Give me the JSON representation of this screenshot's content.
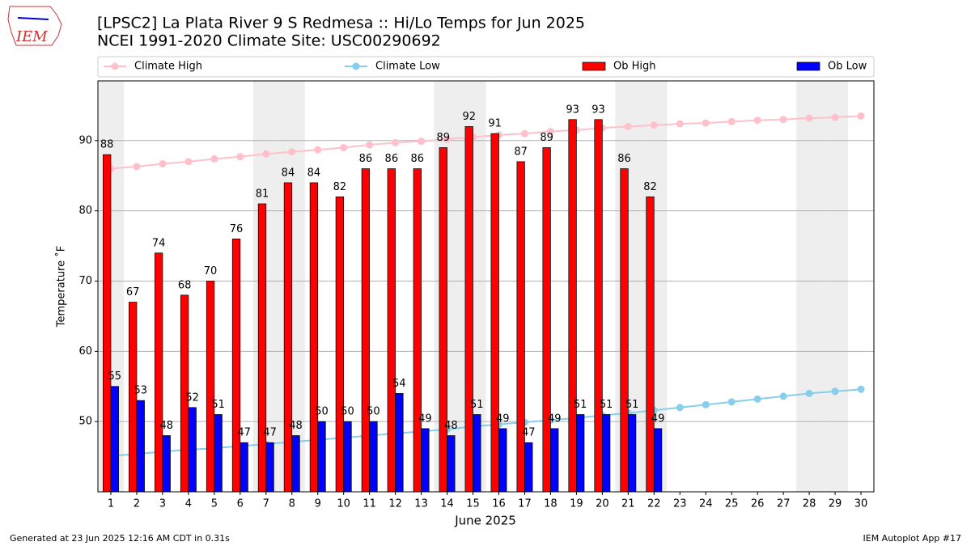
{
  "logo_text": "IEM",
  "footer_left": "Generated at 23 Jun 2025 12:16 AM CDT in 0.31s",
  "footer_right": "IEM Autoplot App #17",
  "chart_data": {
    "type": "combo",
    "title": "[LPSC2] La Plata River 9 S Redmesa :: Hi/Lo Temps for Jun 2025",
    "subtitle": "NCEI 1991-2020 Climate Site: USC00290692",
    "xlabel": "June 2025",
    "ylabel": "Temperature ˚F",
    "x": [
      1,
      2,
      3,
      4,
      5,
      6,
      7,
      8,
      9,
      10,
      11,
      12,
      13,
      14,
      15,
      16,
      17,
      18,
      19,
      20,
      21,
      22,
      23,
      24,
      25,
      26,
      27,
      28,
      29,
      30
    ],
    "xlim": [
      0.5,
      30.5
    ],
    "xticks": [
      1,
      2,
      3,
      4,
      5,
      6,
      7,
      8,
      9,
      10,
      11,
      12,
      13,
      14,
      15,
      16,
      17,
      18,
      19,
      20,
      21,
      22,
      23,
      24,
      25,
      26,
      27,
      28,
      29,
      30
    ],
    "ylim": [
      40,
      98.5
    ],
    "yticks": [
      50,
      60,
      70,
      80,
      90
    ],
    "grid": true,
    "shaded_days": [
      1,
      7,
      8,
      14,
      15,
      21,
      22,
      28,
      29
    ],
    "shade_color": "#eeeeee",
    "series": [
      {
        "name": "Climate High",
        "type": "line",
        "color": "#ffc0cb",
        "values": [
          86.0,
          86.3,
          86.7,
          87.0,
          87.4,
          87.7,
          88.1,
          88.4,
          88.7,
          89.0,
          89.4,
          89.7,
          89.9,
          90.2,
          90.5,
          90.8,
          91.0,
          91.3,
          91.5,
          91.8,
          92.0,
          92.2,
          92.4,
          92.5,
          92.7,
          92.9,
          93.0,
          93.2,
          93.3,
          93.5
        ]
      },
      {
        "name": "Climate Low",
        "type": "line",
        "color": "#87ceeb",
        "values": [
          45.1,
          45.4,
          45.7,
          46.0,
          46.2,
          46.5,
          46.8,
          47.1,
          47.4,
          47.7,
          48.0,
          48.3,
          48.6,
          48.9,
          49.3,
          49.6,
          49.9,
          50.2,
          50.5,
          50.9,
          51.2,
          51.6,
          52.0,
          52.4,
          52.8,
          53.2,
          53.6,
          54.0,
          54.3,
          54.6
        ]
      },
      {
        "name": "Ob High",
        "type": "bar",
        "color": "#ff0000",
        "offset": -1,
        "values": [
          88,
          67,
          74,
          68,
          70,
          76,
          81,
          84,
          84,
          82,
          86,
          86,
          86,
          89,
          92,
          91,
          87,
          89,
          93,
          93,
          86,
          82,
          null,
          null,
          null,
          null,
          null,
          null,
          null,
          null
        ]
      },
      {
        "name": "Ob Low",
        "type": "bar",
        "color": "#0000ff",
        "offset": 1,
        "values": [
          55,
          53,
          48,
          52,
          51,
          47,
          47,
          48,
          50,
          50,
          50,
          54,
          49,
          48,
          51,
          49,
          47,
          49,
          51,
          51,
          51,
          49,
          null,
          null,
          null,
          null,
          null,
          null,
          null,
          null
        ]
      }
    ]
  }
}
